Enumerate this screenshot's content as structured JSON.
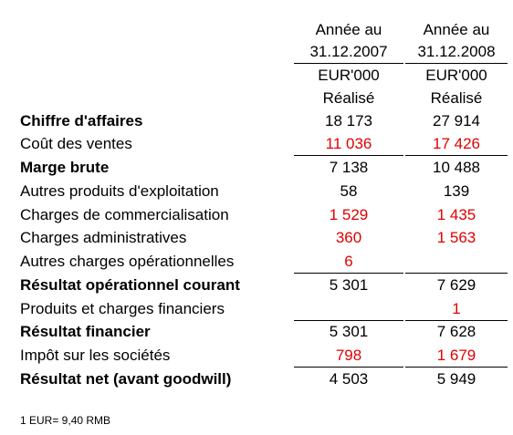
{
  "header": {
    "columns": [
      [
        "Année au",
        "31.12.2007",
        "EUR'000",
        "Réalisé"
      ],
      [
        "Année au",
        "31.12.2008",
        "EUR'000",
        "Réalisé"
      ]
    ]
  },
  "table": {
    "rows": [
      [
        "Chiffre d'affaires",
        "18 173",
        "27 914"
      ],
      [
        "Coût des ventes",
        "11 036",
        "17 426"
      ],
      [
        "Marge brute",
        "7 138",
        "10 488"
      ],
      [
        "Autres produits d'exploitation",
        "58",
        "139"
      ],
      [
        "Charges de commercialisation",
        "1 529",
        "1 435"
      ],
      [
        "Charges administratives",
        "360",
        "1 563"
      ],
      [
        "Autres charges opérationnelles",
        "6",
        ""
      ],
      [
        "Résultat opérationnel courant",
        "5 301",
        "7 629"
      ],
      [
        "Produits et charges financiers",
        "",
        "1"
      ],
      [
        "Résultat financier",
        "5 301",
        "7 628"
      ],
      [
        "Impôt sur les sociétés",
        "798",
        "1 679"
      ],
      [
        "Résultat net (avant goodwill)",
        "4 503",
        "5 949"
      ]
    ]
  },
  "footnote": "1 EUR= 9,40 RMB"
}
